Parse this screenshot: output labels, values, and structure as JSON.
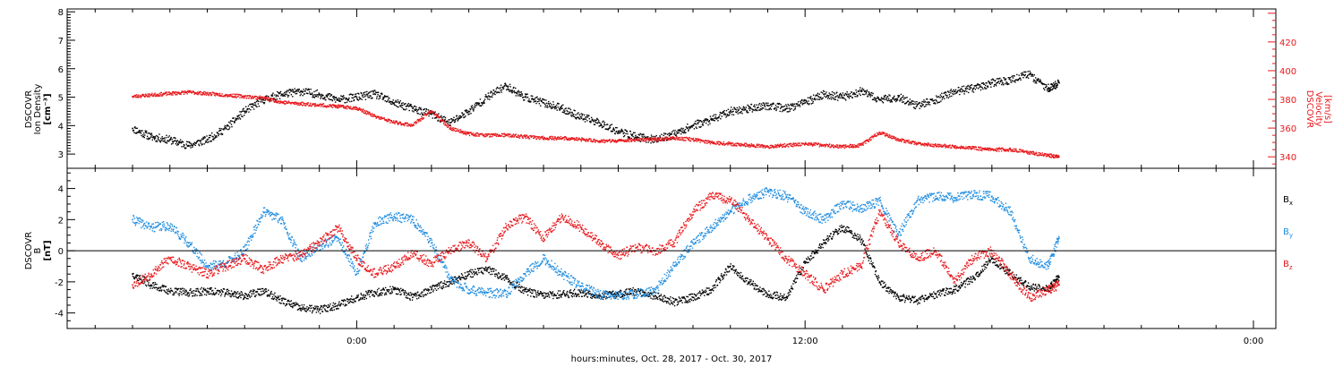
{
  "chart_data": [
    {
      "type": "scatter",
      "panel": "top",
      "ylabel_left": [
        "DSCOVR",
        "Ion Density",
        "[cm⁻³]"
      ],
      "ylabel_right": [
        "DSCOVR",
        "Velocity",
        "[km/s]"
      ],
      "ylim_left": [
        2.5,
        8.1
      ],
      "yticks_left": [
        "8",
        "7",
        "6",
        "5",
        "4",
        "3"
      ],
      "ylim_right": [
        332,
        443
      ],
      "yticks_right": [
        "420",
        "400",
        "380",
        "360",
        "340"
      ],
      "series": [
        {
          "axis": "left",
          "color": "#000000",
          "points": [
            [
              -6.0,
              3.9
            ],
            [
              -5.5,
              3.6
            ],
            [
              -5.0,
              3.5
            ],
            [
              -4.5,
              3.3
            ],
            [
              -4.0,
              3.5
            ],
            [
              -3.5,
              3.9
            ],
            [
              -3.0,
              4.5
            ],
            [
              -2.5,
              4.9
            ],
            [
              -2.0,
              5.1
            ],
            [
              -1.5,
              5.2
            ],
            [
              -1.0,
              5.1
            ],
            [
              -0.5,
              4.9
            ],
            [
              0.0,
              5.0
            ],
            [
              0.5,
              5.1
            ],
            [
              1.0,
              4.8
            ],
            [
              1.5,
              4.6
            ],
            [
              2.0,
              4.4
            ],
            [
              2.5,
              4.1
            ],
            [
              3.0,
              4.5
            ],
            [
              3.5,
              5.0
            ],
            [
              4.0,
              5.4
            ],
            [
              4.5,
              5.0
            ],
            [
              5.0,
              4.8
            ],
            [
              5.5,
              4.6
            ],
            [
              6.0,
              4.3
            ],
            [
              6.5,
              4.1
            ],
            [
              7.0,
              3.8
            ],
            [
              7.5,
              3.6
            ],
            [
              8.0,
              3.5
            ],
            [
              8.5,
              3.7
            ],
            [
              9.0,
              4.0
            ],
            [
              9.5,
              4.2
            ],
            [
              10.0,
              4.5
            ],
            [
              10.5,
              4.6
            ],
            [
              11.0,
              4.7
            ],
            [
              11.5,
              4.6
            ],
            [
              12.0,
              4.8
            ],
            [
              12.5,
              5.1
            ],
            [
              13.0,
              5.0
            ],
            [
              13.5,
              5.2
            ],
            [
              14.0,
              4.9
            ],
            [
              14.5,
              5.0
            ],
            [
              15.0,
              4.7
            ],
            [
              15.5,
              4.9
            ],
            [
              16.0,
              5.2
            ],
            [
              16.5,
              5.3
            ],
            [
              17.0,
              5.5
            ],
            [
              17.5,
              5.6
            ],
            [
              18.0,
              5.8
            ],
            [
              18.5,
              5.3
            ],
            [
              18.8,
              5.5
            ]
          ]
        },
        {
          "axis": "right",
          "color": "#e8191d",
          "points": [
            [
              -6.0,
              382
            ],
            [
              -5.5,
              383
            ],
            [
              -5.0,
              384
            ],
            [
              -4.5,
              385
            ],
            [
              -4.0,
              384
            ],
            [
              -3.5,
              383
            ],
            [
              -3.0,
              382
            ],
            [
              -2.5,
              381
            ],
            [
              -2.0,
              378
            ],
            [
              -1.5,
              377
            ],
            [
              -1.0,
              376
            ],
            [
              -0.5,
              375
            ],
            [
              0.0,
              374
            ],
            [
              0.5,
              368
            ],
            [
              1.0,
              364
            ],
            [
              1.5,
              362
            ],
            [
              2.0,
              372
            ],
            [
              2.5,
              360
            ],
            [
              3.0,
              356
            ],
            [
              3.5,
              355
            ],
            [
              4.0,
              355
            ],
            [
              4.5,
              354
            ],
            [
              5.0,
              353
            ],
            [
              5.5,
              353
            ],
            [
              6.0,
              352
            ],
            [
              6.5,
              351
            ],
            [
              7.0,
              351
            ],
            [
              7.5,
              352
            ],
            [
              8.0,
              352
            ],
            [
              8.5,
              353
            ],
            [
              9.0,
              352
            ],
            [
              9.5,
              350
            ],
            [
              10.0,
              349
            ],
            [
              10.5,
              348
            ],
            [
              11.0,
              347
            ],
            [
              11.5,
              348
            ],
            [
              12.0,
              349
            ],
            [
              12.5,
              348
            ],
            [
              13.0,
              347
            ],
            [
              13.5,
              348
            ],
            [
              14.0,
              357
            ],
            [
              14.5,
              352
            ],
            [
              15.0,
              349
            ],
            [
              15.5,
              348
            ],
            [
              16.0,
              347
            ],
            [
              16.5,
              346
            ],
            [
              17.0,
              345
            ],
            [
              17.5,
              345
            ],
            [
              18.0,
              343
            ],
            [
              18.5,
              341
            ],
            [
              18.8,
              340
            ]
          ]
        }
      ]
    },
    {
      "type": "scatter",
      "panel": "bottom",
      "ylabel_left": [
        "DSCOVR",
        "B",
        "[nT]"
      ],
      "ylim_left": [
        -5.0,
        5.3
      ],
      "yticks_left": [
        "4",
        "2",
        "0",
        "-2",
        "-4"
      ],
      "zero_line": true,
      "legend_placement": "right",
      "series": [
        {
          "name": "B",
          "subscript": "x",
          "color": "#000000",
          "points": [
            [
              -6.0,
              -1.5
            ],
            [
              -5.5,
              -2.2
            ],
            [
              -5.0,
              -2.6
            ],
            [
              -4.5,
              -2.7
            ],
            [
              -4.0,
              -2.6
            ],
            [
              -3.5,
              -2.7
            ],
            [
              -3.0,
              -2.9
            ],
            [
              -2.5,
              -2.6
            ],
            [
              -2.0,
              -3.2
            ],
            [
              -1.5,
              -3.7
            ],
            [
              -1.0,
              -3.8
            ],
            [
              -0.5,
              -3.5
            ],
            [
              0.0,
              -3.0
            ],
            [
              0.5,
              -2.7
            ],
            [
              1.0,
              -2.5
            ],
            [
              1.5,
              -3.0
            ],
            [
              2.0,
              -2.5
            ],
            [
              2.5,
              -2.0
            ],
            [
              3.0,
              -1.5
            ],
            [
              3.5,
              -1.2
            ],
            [
              4.0,
              -1.8
            ],
            [
              4.5,
              -2.6
            ],
            [
              5.0,
              -2.9
            ],
            [
              5.5,
              -2.8
            ],
            [
              6.0,
              -2.7
            ],
            [
              6.5,
              -2.9
            ],
            [
              7.0,
              -2.8
            ],
            [
              7.5,
              -2.6
            ],
            [
              8.0,
              -2.9
            ],
            [
              8.5,
              -3.3
            ],
            [
              9.0,
              -3.0
            ],
            [
              9.5,
              -2.5
            ],
            [
              10.0,
              -1.0
            ],
            [
              10.5,
              -2.0
            ],
            [
              11.0,
              -2.8
            ],
            [
              11.5,
              -3.0
            ],
            [
              12.0,
              -0.8
            ],
            [
              12.5,
              0.5
            ],
            [
              13.0,
              1.5
            ],
            [
              13.5,
              0.7
            ],
            [
              14.0,
              -2.0
            ],
            [
              14.5,
              -3.0
            ],
            [
              15.0,
              -3.2
            ],
            [
              15.5,
              -2.8
            ],
            [
              16.0,
              -2.5
            ],
            [
              16.5,
              -1.8
            ],
            [
              17.0,
              -0.5
            ],
            [
              17.5,
              -1.5
            ],
            [
              18.0,
              -2.3
            ],
            [
              18.5,
              -2.5
            ],
            [
              18.8,
              -1.7
            ]
          ]
        },
        {
          "name": "B",
          "subscript": "y",
          "color": "#1f8de0",
          "points": [
            [
              -6.0,
              2.0
            ],
            [
              -5.5,
              1.5
            ],
            [
              -5.0,
              1.6
            ],
            [
              -4.5,
              0.5
            ],
            [
              -4.0,
              -1.0
            ],
            [
              -3.5,
              -0.8
            ],
            [
              -3.0,
              0.0
            ],
            [
              -2.5,
              2.5
            ],
            [
              -2.0,
              2.0
            ],
            [
              -1.5,
              -0.5
            ],
            [
              -1.0,
              0.3
            ],
            [
              -0.5,
              0.8
            ],
            [
              0.0,
              -1.5
            ],
            [
              0.5,
              1.8
            ],
            [
              1.0,
              2.2
            ],
            [
              1.5,
              2.0
            ],
            [
              2.0,
              0.5
            ],
            [
              2.5,
              -1.8
            ],
            [
              3.0,
              -2.5
            ],
            [
              3.5,
              -2.7
            ],
            [
              4.0,
              -2.8
            ],
            [
              4.5,
              -1.5
            ],
            [
              5.0,
              -0.5
            ],
            [
              5.5,
              -1.5
            ],
            [
              6.0,
              -2.3
            ],
            [
              6.5,
              -2.8
            ],
            [
              7.0,
              -2.9
            ],
            [
              7.5,
              -2.8
            ],
            [
              8.0,
              -2.5
            ],
            [
              8.5,
              -1.0
            ],
            [
              9.0,
              0.5
            ],
            [
              9.5,
              1.5
            ],
            [
              10.0,
              2.5
            ],
            [
              10.5,
              3.3
            ],
            [
              11.0,
              3.8
            ],
            [
              11.5,
              3.5
            ],
            [
              12.0,
              2.5
            ],
            [
              12.5,
              2.0
            ],
            [
              13.0,
              3.0
            ],
            [
              13.5,
              2.7
            ],
            [
              14.0,
              3.2
            ],
            [
              14.5,
              1.0
            ],
            [
              15.0,
              3.2
            ],
            [
              15.5,
              3.5
            ],
            [
              16.0,
              3.4
            ],
            [
              16.5,
              3.6
            ],
            [
              17.0,
              3.5
            ],
            [
              17.5,
              2.5
            ],
            [
              18.0,
              -0.5
            ],
            [
              18.5,
              -1.0
            ],
            [
              18.8,
              0.8
            ]
          ]
        },
        {
          "name": "B",
          "subscript": "z",
          "color": "#e8191d",
          "points": [
            [
              -6.0,
              -2.2
            ],
            [
              -5.5,
              -1.5
            ],
            [
              -5.0,
              -0.5
            ],
            [
              -4.5,
              -1.0
            ],
            [
              -4.0,
              -1.5
            ],
            [
              -3.5,
              -1.0
            ],
            [
              -3.0,
              -0.5
            ],
            [
              -2.5,
              -1.2
            ],
            [
              -2.0,
              -0.5
            ],
            [
              -1.5,
              -0.3
            ],
            [
              -1.0,
              0.5
            ],
            [
              -0.5,
              1.5
            ],
            [
              0.0,
              -0.5
            ],
            [
              0.5,
              -1.5
            ],
            [
              1.0,
              -1.0
            ],
            [
              1.5,
              -0.2
            ],
            [
              2.0,
              -0.8
            ],
            [
              2.5,
              0.0
            ],
            [
              3.0,
              0.5
            ],
            [
              3.5,
              -0.5
            ],
            [
              4.0,
              1.5
            ],
            [
              4.5,
              2.2
            ],
            [
              5.0,
              0.8
            ],
            [
              5.5,
              2.2
            ],
            [
              6.0,
              1.5
            ],
            [
              6.5,
              0.5
            ],
            [
              7.0,
              -0.3
            ],
            [
              7.5,
              0.2
            ],
            [
              8.0,
              0.0
            ],
            [
              8.5,
              0.5
            ],
            [
              9.0,
              2.5
            ],
            [
              9.5,
              3.5
            ],
            [
              10.0,
              3.3
            ],
            [
              10.5,
              2.0
            ],
            [
              11.0,
              0.8
            ],
            [
              11.5,
              -0.5
            ],
            [
              12.0,
              -1.5
            ],
            [
              12.5,
              -2.5
            ],
            [
              13.0,
              -1.5
            ],
            [
              13.5,
              -1.0
            ],
            [
              14.0,
              2.5
            ],
            [
              14.5,
              0.5
            ],
            [
              15.0,
              -0.5
            ],
            [
              15.5,
              0.0
            ],
            [
              16.0,
              -2.0
            ],
            [
              16.5,
              -0.5
            ],
            [
              17.0,
              0.0
            ],
            [
              17.5,
              -1.5
            ],
            [
              18.0,
              -3.0
            ],
            [
              18.5,
              -2.5
            ],
            [
              18.8,
              -2.2
            ]
          ]
        }
      ]
    }
  ],
  "x_axis": {
    "xlim_hours": [
      -7.75,
      24.6
    ],
    "ticks": [
      {
        "hours": 0,
        "label": "0:00"
      },
      {
        "hours": 12,
        "label": "12:00"
      },
      {
        "hours": 24,
        "label": "0:00"
      }
    ],
    "xlabel": "hours:minutes, Oct. 28, 2017 - Oct. 30, 2017"
  }
}
